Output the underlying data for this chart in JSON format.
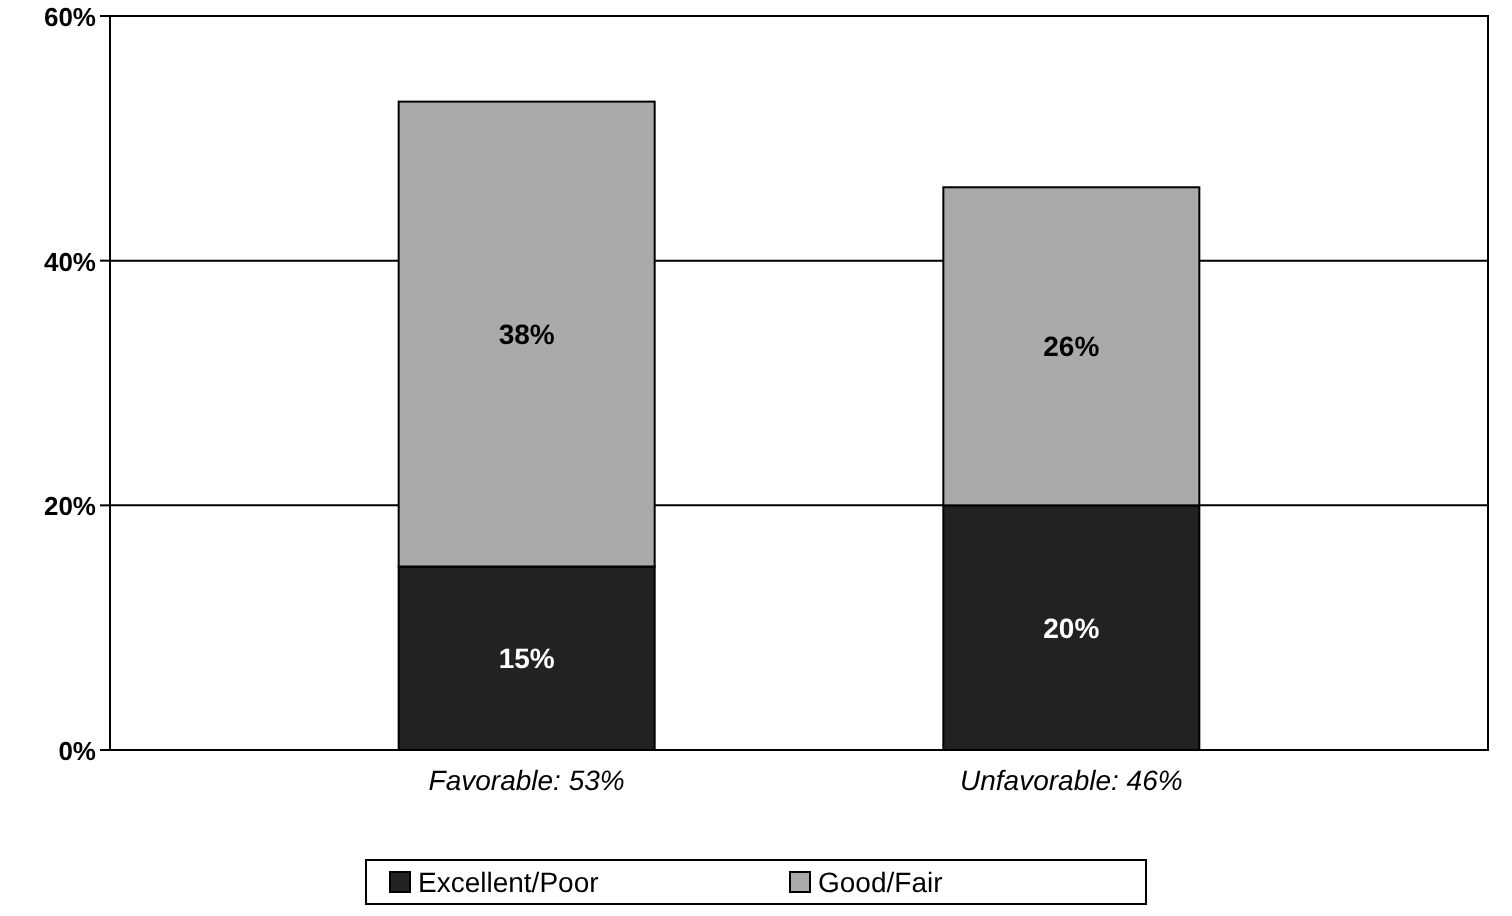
{
  "chart_data": {
    "type": "bar",
    "stacked": true,
    "categories": [
      "Favorable: 53%",
      "Unfavorable: 46%"
    ],
    "series": [
      {
        "name": "Excellent/Poor",
        "color": "#222222",
        "values": [
          15,
          20
        ],
        "value_labels": [
          "15%",
          "20%"
        ]
      },
      {
        "name": "Good/Fair",
        "color": "#aaaaaa",
        "values": [
          38,
          26
        ],
        "value_labels": [
          "38%",
          "26%"
        ]
      }
    ],
    "ylim": [
      0,
      60
    ],
    "yticks": [
      {
        "value": 0,
        "label": "0%"
      },
      {
        "value": 20,
        "label": "20%"
      },
      {
        "value": 40,
        "label": "40%"
      },
      {
        "value": 60,
        "label": "60%"
      }
    ],
    "grid": "y",
    "legend": "bottom"
  }
}
